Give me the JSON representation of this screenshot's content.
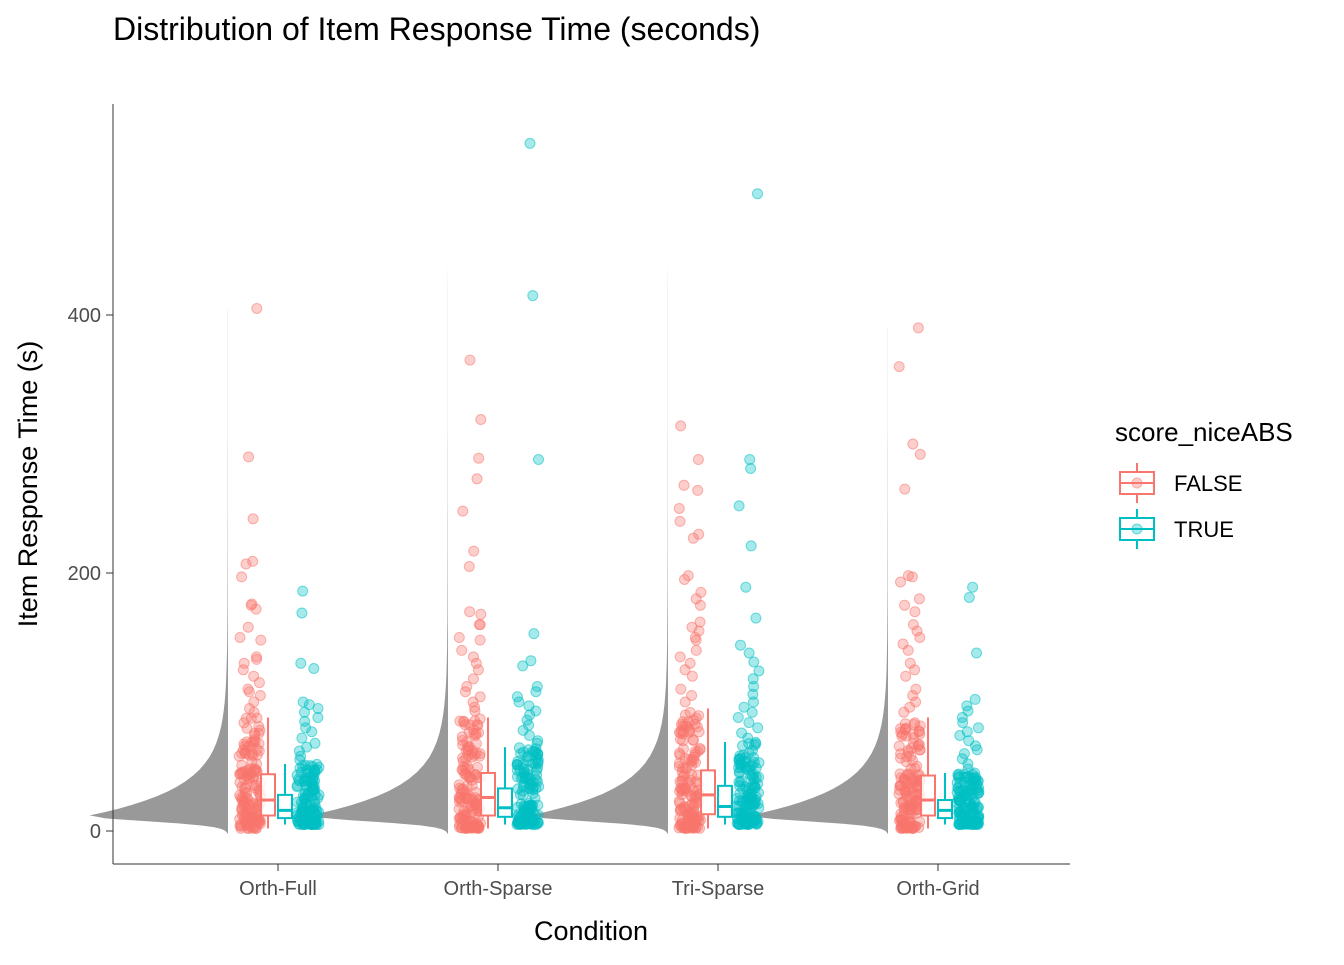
{
  "chart_data": {
    "type": "raincloud",
    "title": "Distribution of Item Response Time (seconds)",
    "xlabel": "Condition",
    "ylabel": "Item Response Time (s)",
    "categories": [
      "Orth-Full",
      "Orth-Sparse",
      "Tri-Sparse",
      "Orth-Grid"
    ],
    "yticks": [
      0,
      200,
      400
    ],
    "ylim": [
      -25,
      545
    ],
    "grid": false,
    "legend": {
      "title": "score_niceABS",
      "position": "right",
      "entries": [
        {
          "label": "FALSE",
          "color": "#F8766D"
        },
        {
          "label": "TRUE",
          "color": "#00BFC4"
        }
      ]
    },
    "density_color": "#999999",
    "series": [
      {
        "name": "FALSE",
        "color": "#F8766D",
        "boxplots": [
          {
            "category": "Orth-Full",
            "min": 2,
            "q1": 12,
            "median": 24,
            "q3": 44,
            "max": 88
          },
          {
            "category": "Orth-Sparse",
            "min": 2,
            "q1": 12,
            "median": 26,
            "q3": 45,
            "max": 88
          },
          {
            "category": "Tri-Sparse",
            "min": 2,
            "q1": 13,
            "median": 28,
            "q3": 47,
            "max": 95
          },
          {
            "category": "Orth-Grid",
            "min": 2,
            "q1": 12,
            "median": 24,
            "q3": 43,
            "max": 88
          }
        ],
        "outliers": [
          {
            "category": "Orth-Full",
            "values": [
              405,
              290,
              242,
              209,
              207,
              197,
              176,
              175,
              172,
              158,
              150,
              148,
              135,
              133,
              130,
              125,
              120,
              115,
              110,
              108,
              105,
              100,
              95,
              92
            ]
          },
          {
            "category": "Orth-Sparse",
            "values": [
              365,
              319,
              289,
              273,
              248,
              217,
              205,
              170,
              168,
              160,
              160,
              150,
              148,
              140,
              135,
              130,
              125,
              118,
              112,
              108,
              104,
              100,
              96,
              93
            ]
          },
          {
            "category": "Tri-Sparse",
            "values": [
              314,
              288,
              268,
              264,
              250,
              240,
              230,
              227,
              198,
              195,
              185,
              180,
              175,
              162,
              158,
              155,
              150,
              148,
              140,
              135,
              130,
              125,
              120,
              110,
              105,
              100
            ]
          },
          {
            "category": "Orth-Grid",
            "values": [
              390,
              360,
              300,
              292,
              265,
              198,
              197,
              193,
              180,
              175,
              170,
              160,
              155,
              150,
              145,
              140,
              130,
              125,
              120,
              110,
              105,
              100,
              96,
              92
            ]
          }
        ]
      },
      {
        "name": "TRUE",
        "color": "#00BFC4",
        "boxplots": [
          {
            "category": "Orth-Full",
            "min": 5,
            "q1": 10,
            "median": 16,
            "q3": 28,
            "max": 52
          },
          {
            "category": "Orth-Sparse",
            "min": 5,
            "q1": 11,
            "median": 18,
            "q3": 33,
            "max": 65
          },
          {
            "category": "Tri-Sparse",
            "min": 5,
            "q1": 11,
            "median": 19,
            "q3": 35,
            "max": 69
          },
          {
            "category": "Orth-Grid",
            "min": 5,
            "q1": 10,
            "median": 16,
            "q3": 24,
            "max": 45
          }
        ],
        "outliers": [
          {
            "category": "Orth-Full",
            "values": [
              186,
              169,
              130,
              126,
              100,
              98,
              95,
              92,
              88,
              85,
              80,
              77,
              72,
              68,
              65,
              62,
              58,
              55
            ]
          },
          {
            "category": "Orth-Sparse",
            "values": [
              533,
              415,
              288,
              153,
              132,
              128,
              112,
              108,
              104,
              100,
              97,
              93,
              90,
              86,
              82,
              78,
              74,
              70,
              68
            ]
          },
          {
            "category": "Tri-Sparse",
            "values": [
              494,
              288,
              281,
              252,
              221,
              189,
              165,
              144,
              138,
              131,
              124,
              118,
              112,
              106,
              100,
              96,
              92,
              88,
              84,
              80,
              76,
              72
            ]
          },
          {
            "category": "Orth-Grid",
            "values": [
              189,
              181,
              138,
              102,
              97,
              93,
              88,
              84,
              80,
              77,
              74,
              70,
              66,
              63,
              60,
              56,
              52,
              48
            ]
          }
        ]
      }
    ]
  }
}
